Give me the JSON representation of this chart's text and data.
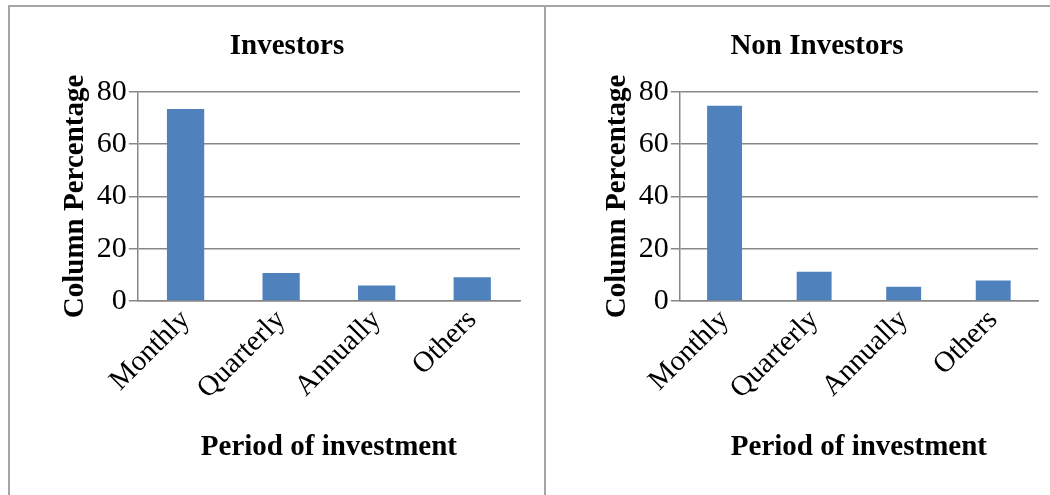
{
  "chart_data": [
    {
      "type": "bar",
      "title": "Investors",
      "xlabel": "Period of investment",
      "ylabel": "Column Percentage",
      "categories": [
        "Monthly",
        "Quarterly",
        "Annually",
        "Others"
      ],
      "values": [
        73.4,
        10.7,
        5.9,
        9.1
      ],
      "color": "#4f81bd",
      "ylim": [
        0,
        80
      ],
      "yticks": [
        0,
        20,
        40,
        60,
        80
      ],
      "grid": "y"
    },
    {
      "type": "bar",
      "title": "Non Investors",
      "xlabel": "Period of investment",
      "ylabel": "Column Percentage",
      "categories": [
        "Monthly",
        "Quarterly",
        "Annually",
        "Others"
      ],
      "values": [
        74.7,
        11.2,
        5.5,
        7.8
      ],
      "color": "#4f81bd",
      "ylim": [
        0,
        80
      ],
      "yticks": [
        0,
        20,
        40,
        60,
        80
      ],
      "grid": "y"
    }
  ]
}
